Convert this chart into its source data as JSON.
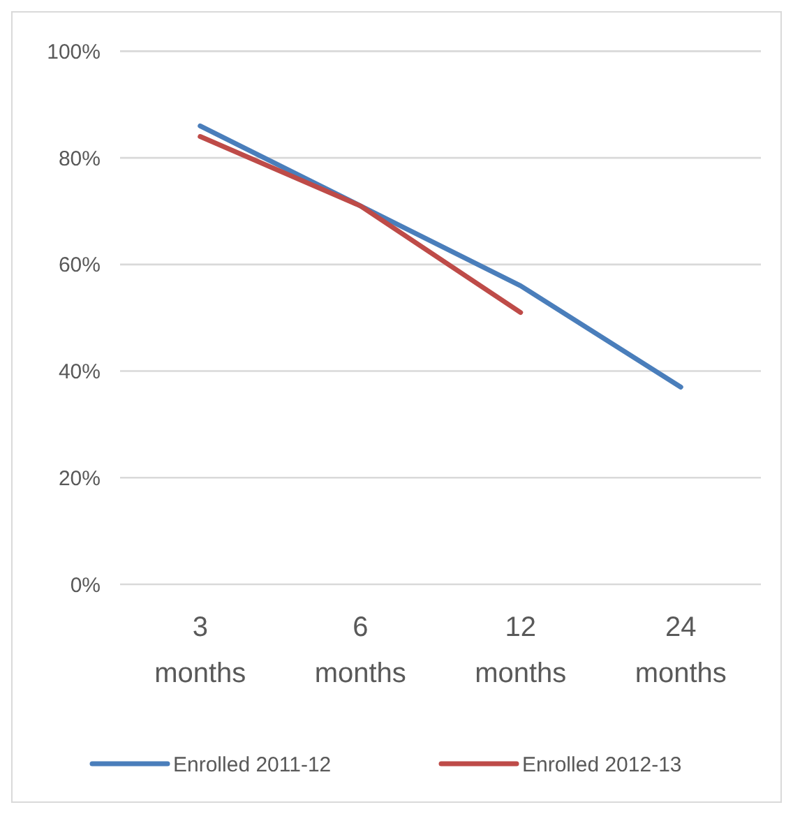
{
  "chart_data": {
    "type": "line",
    "categories": [
      "3 months",
      "6 months",
      "12 months",
      "24 months"
    ],
    "series": [
      {
        "name": "Enrolled 2011-12",
        "color": "#4a7ebb",
        "values": [
          86,
          71,
          56,
          37
        ]
      },
      {
        "name": "Enrolled 2012-13",
        "color": "#be4b48",
        "values": [
          84,
          71,
          51,
          null
        ]
      }
    ],
    "ylim": [
      0,
      100
    ],
    "yticks": [
      {
        "value": 0,
        "label": "0%"
      },
      {
        "value": 20,
        "label": "20%"
      },
      {
        "value": 40,
        "label": "40%"
      },
      {
        "value": 60,
        "label": "60%"
      },
      {
        "value": 80,
        "label": "80%"
      },
      {
        "value": 100,
        "label": "100%"
      }
    ],
    "grid": "y",
    "legend": "bottom",
    "marker": "none"
  }
}
